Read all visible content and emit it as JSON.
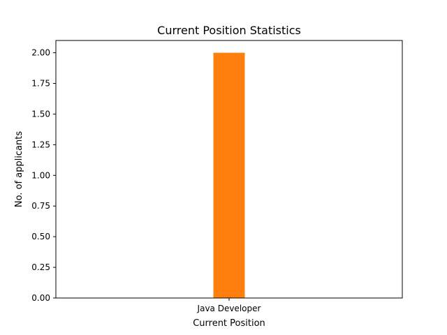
{
  "chart_data": {
    "type": "bar",
    "title": "Current Position Statistics",
    "xlabel": "Current Position",
    "ylabel": "No. of applicants",
    "categories": [
      "Java Developer"
    ],
    "series": [
      {
        "values": [
          2
        ],
        "color": "#ff7f0e"
      }
    ],
    "ylim": [
      0,
      2.1
    ],
    "yticks": [
      "0.00",
      "0.25",
      "0.50",
      "0.75",
      "1.00",
      "1.25",
      "1.50",
      "1.75",
      "2.00"
    ],
    "grid": false,
    "legend": "none"
  }
}
